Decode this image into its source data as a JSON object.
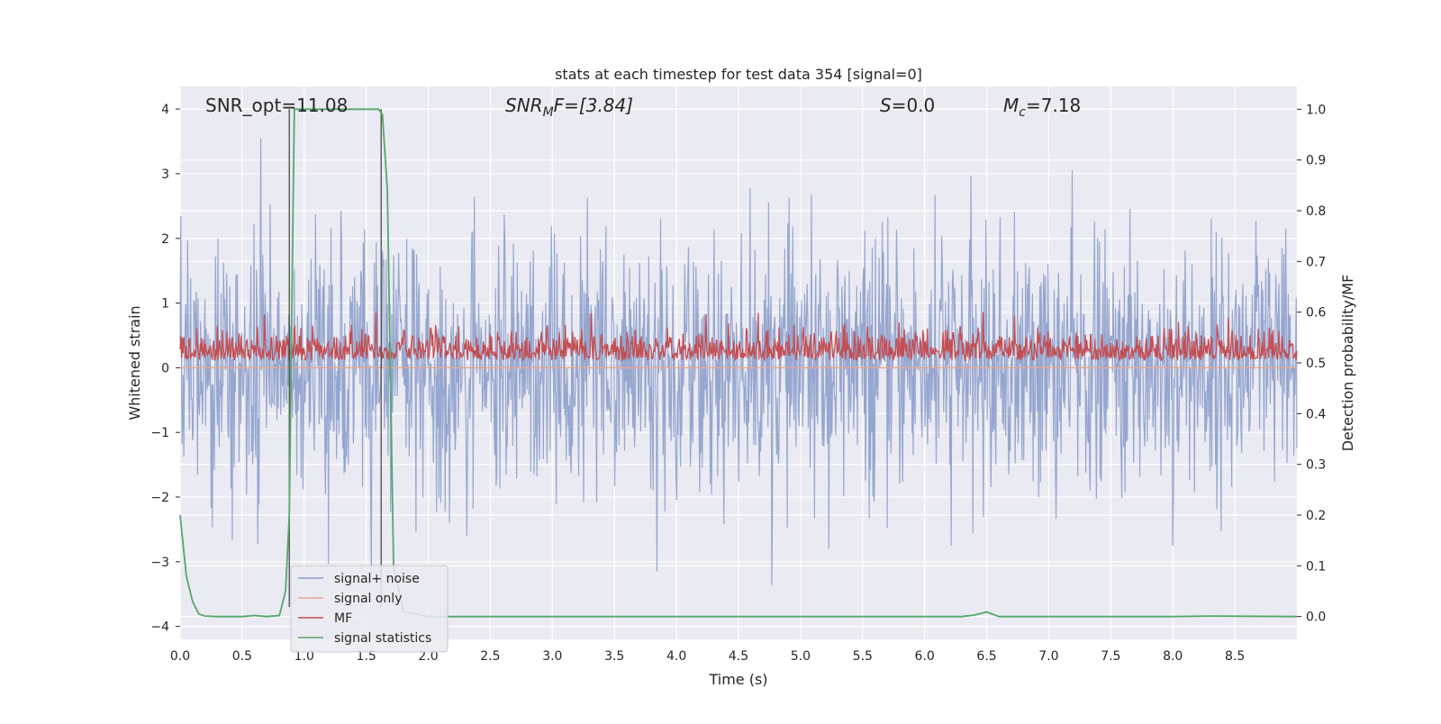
{
  "chart_data": {
    "type": "line",
    "title": "stats at each timestep for test data 354 [signal=0]",
    "xlabel": "Time (s)",
    "ylabel_left": "Whitened strain",
    "ylabel_right": "Detection probability/MF",
    "xlim": [
      0.0,
      9.0
    ],
    "ylim_left": [
      -4.2,
      4.35
    ],
    "ylim_right": [
      -0.045,
      1.045
    ],
    "x_ticks": [
      "0.0",
      "0.5",
      "1.0",
      "1.5",
      "2.0",
      "2.5",
      "3.0",
      "3.5",
      "4.0",
      "4.5",
      "5.0",
      "5.5",
      "6.0",
      "6.5",
      "7.0",
      "7.5",
      "8.0",
      "8.5"
    ],
    "y_left_ticks": [
      "4",
      "3",
      "2",
      "1",
      "0",
      "−1",
      "−2",
      "−3",
      "−4"
    ],
    "y_right_ticks": [
      "1.0",
      "0.9",
      "0.8",
      "0.7",
      "0.6",
      "0.5",
      "0.4",
      "0.3",
      "0.2",
      "0.1",
      "0.0"
    ],
    "grid": true,
    "annotations": {
      "snr_opt": "SNR_opt=11.08",
      "snr_mf_main": "SNR",
      "snr_mf_sub": "M",
      "snr_mf_rest": "F=[3.84]",
      "s_main": "S",
      "s_rest": "=0.0",
      "mc_main": "M",
      "mc_sub": "c",
      "mc_rest": "=7.18"
    },
    "legend": {
      "position": "lower left",
      "entries": [
        "signal+ noise",
        "signal only",
        "MF",
        "signal statistics"
      ]
    },
    "series": [
      {
        "name": "signal+ noise",
        "axis": "left",
        "description": "whitened strain noise, amplitude roughly ±2.5 with peaks to ±4",
        "envelope": {
          "typical": 2.3,
          "max": 4.0,
          "min": -3.7
        }
      },
      {
        "name": "signal only",
        "axis": "left",
        "values": [
          0.0
        ]
      },
      {
        "name": "MF",
        "axis": "right",
        "description": "matched-filter output fluctuating between about 0.5 and 0.6",
        "band": [
          0.5,
          0.6
        ]
      },
      {
        "name": "signal statistics",
        "axis": "right",
        "x": [
          0.0,
          0.05,
          0.1,
          0.15,
          0.2,
          0.3,
          0.5,
          0.6,
          0.7,
          0.8,
          0.85,
          0.88,
          0.92,
          0.95,
          1.0,
          1.2,
          1.4,
          1.6,
          1.63,
          1.67,
          1.72,
          1.8,
          2.0,
          3.0,
          4.0,
          5.0,
          6.0,
          6.3,
          6.4,
          6.5,
          6.6,
          7.0,
          8.0,
          8.3,
          9.0
        ],
        "values": [
          0.2,
          0.08,
          0.03,
          0.005,
          0.001,
          0.0,
          0.0,
          0.002,
          0.0,
          0.002,
          0.05,
          0.2,
          1.0,
          1.0,
          1.0,
          1.0,
          1.0,
          1.0,
          0.99,
          0.84,
          0.1,
          0.01,
          0.0,
          0.0,
          0.0,
          0.0,
          0.0,
          0.0,
          0.003,
          0.009,
          0.0,
          0.0,
          0.0,
          0.001,
          0.0
        ]
      }
    ],
    "vertical_lines_x": [
      0.88,
      1.62
    ],
    "colors": {
      "signal_noise": "#8c9fcb",
      "signal_only": "#e9a68d",
      "mf": "#c44e52",
      "signal_statistics": "#55a868",
      "background": "#eaeaf2",
      "vline": "#4a4a4a"
    }
  }
}
